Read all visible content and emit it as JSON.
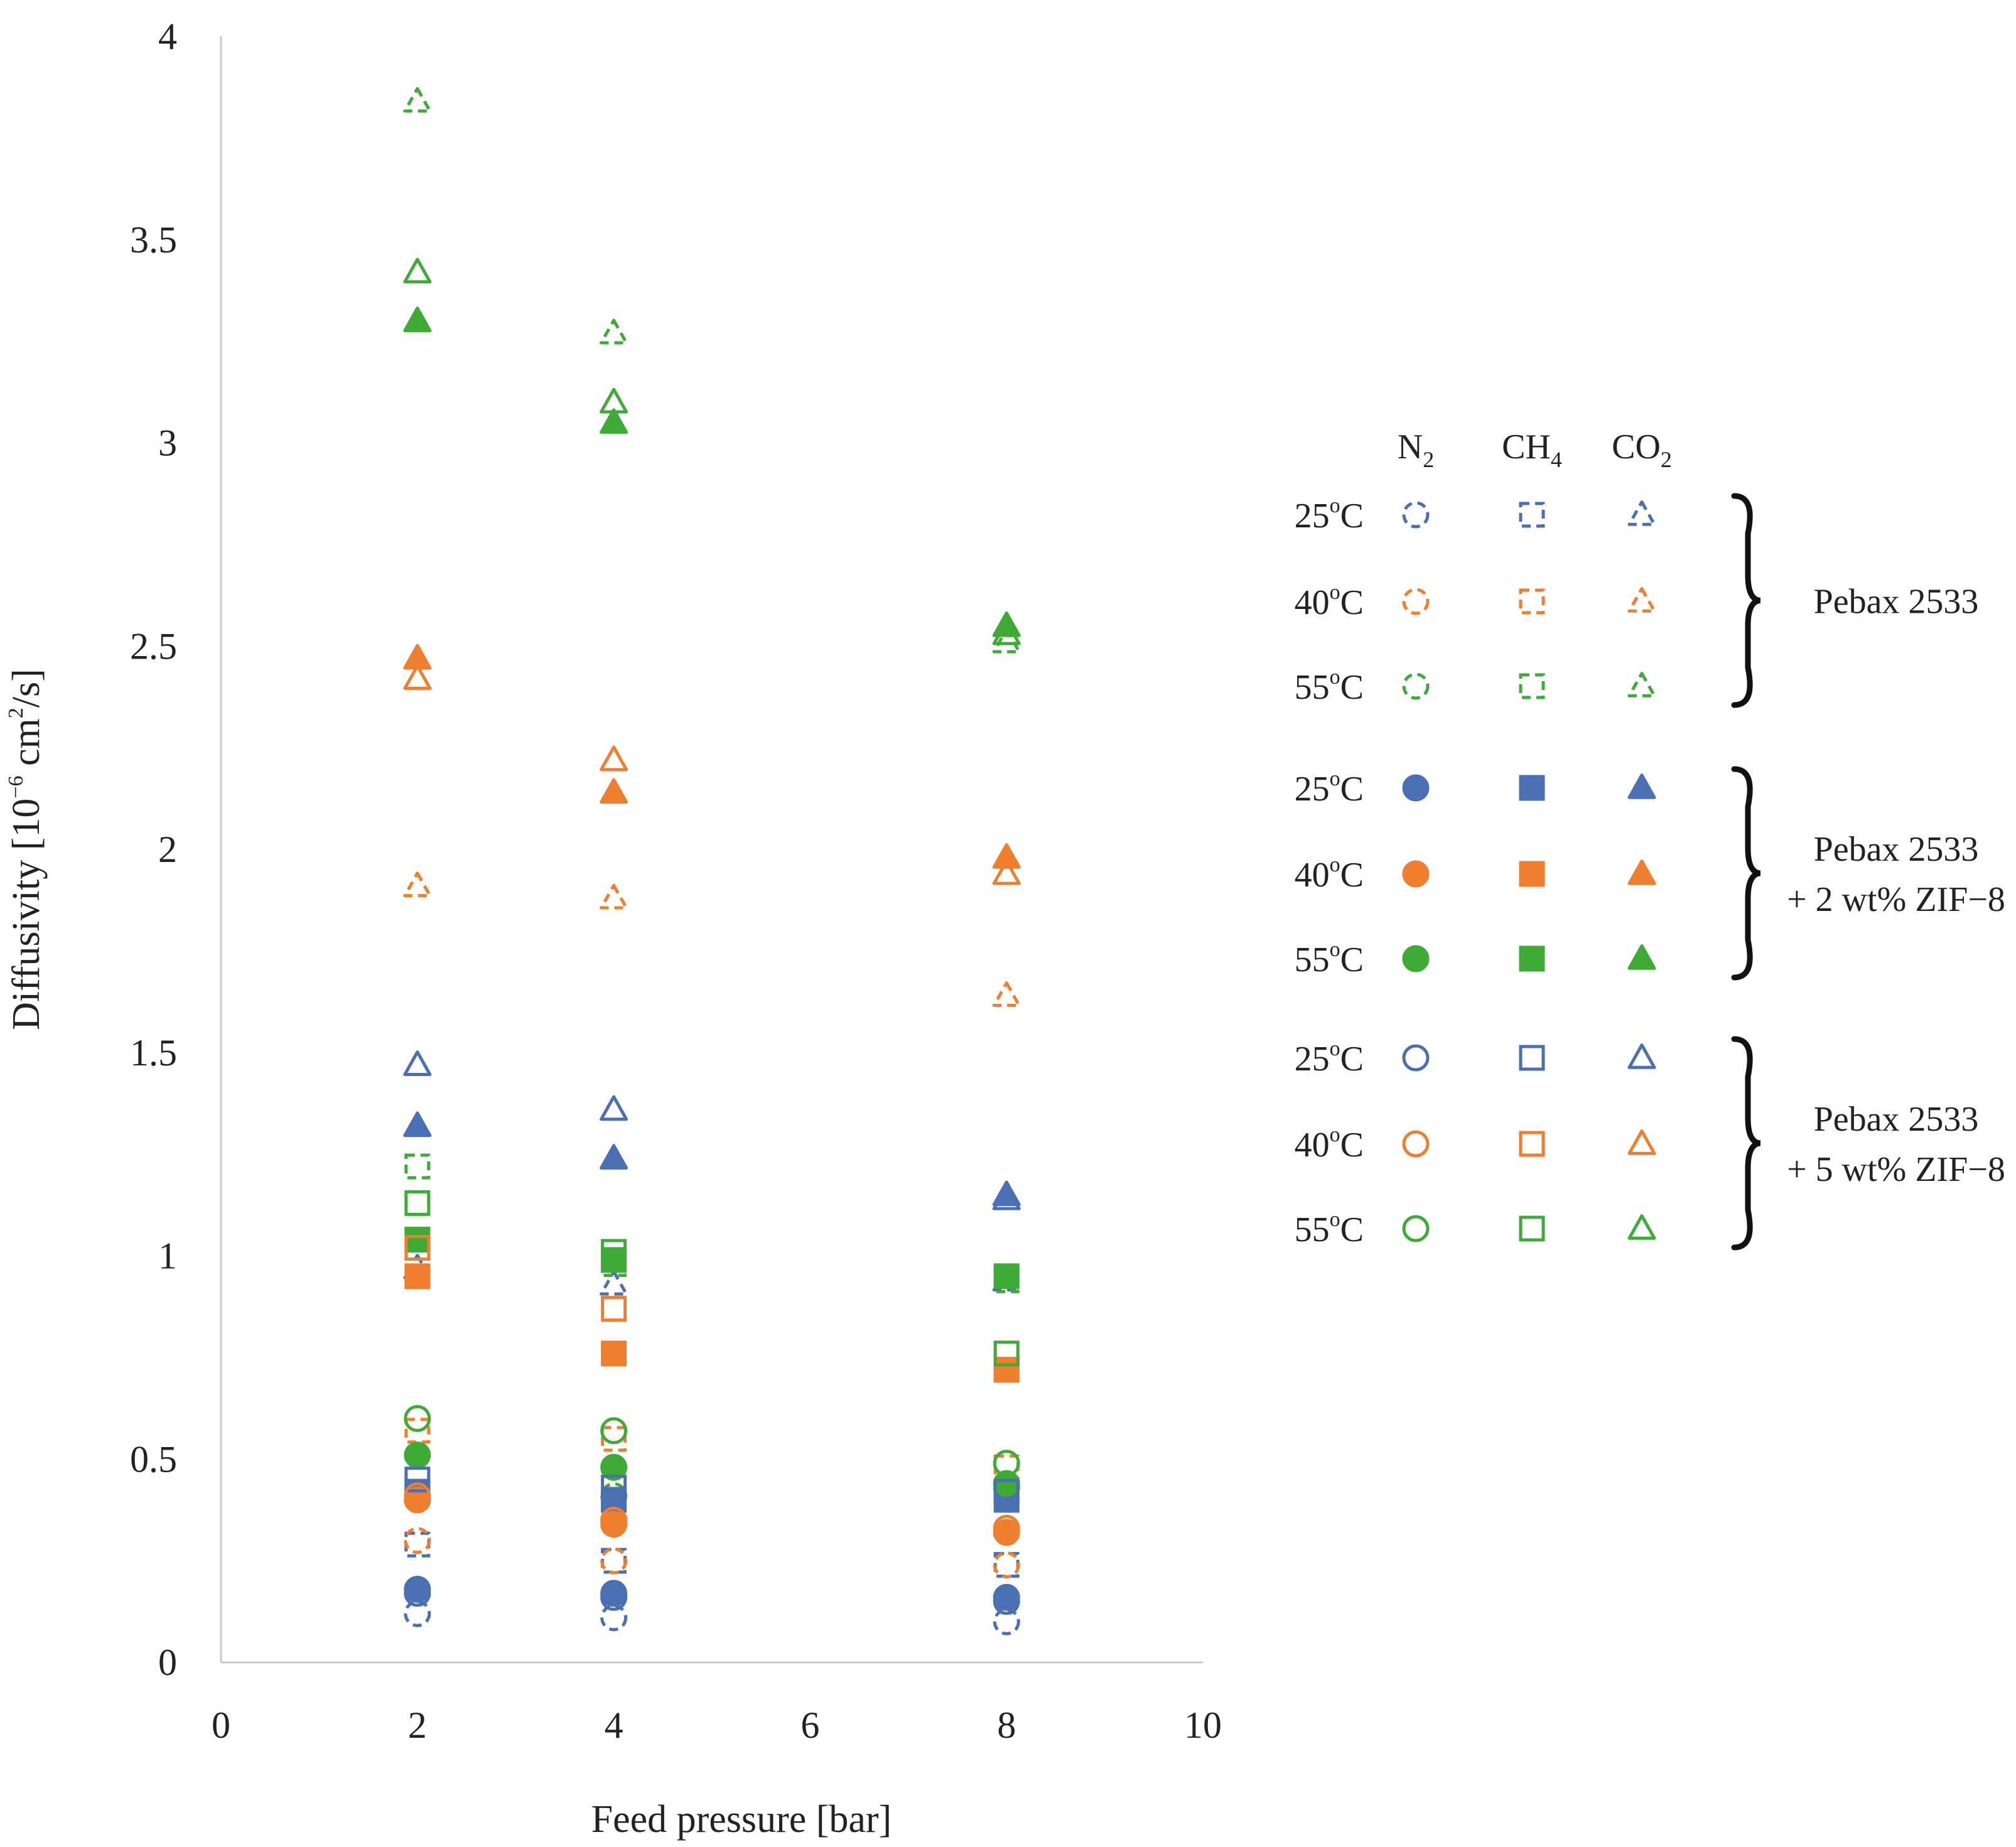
{
  "chart_data": {
    "type": "scatter",
    "xlabel": "Feed pressure [bar]",
    "ylabel_parts": {
      "main": "Diffusivity [10",
      "exp": "−6",
      "unit": " cm",
      "sq": "2",
      "end": "/s]"
    },
    "xlim": [
      0,
      10
    ],
    "ylim": [
      0,
      4
    ],
    "x_ticks": [
      "0",
      "2",
      "4",
      "6",
      "8",
      "10"
    ],
    "y_ticks": [
      "0",
      "0.5",
      "1",
      "1.5",
      "2",
      "2.5",
      "3",
      "3.5",
      "4"
    ],
    "x": [
      2,
      4,
      8
    ],
    "gases": [
      {
        "key": "N2",
        "base": "N",
        "sub": "2",
        "marker": "circle"
      },
      {
        "key": "CH4",
        "base": "CH",
        "sub": "4",
        "marker": "square"
      },
      {
        "key": "CO2",
        "base": "CO",
        "sub": "2",
        "marker": "triangle"
      }
    ],
    "temperatures": [
      {
        "label_num": "25",
        "label_sup": "o",
        "label_end": "C",
        "color": "#4a6fb3"
      },
      {
        "label_num": "40",
        "label_sup": "o",
        "label_end": "C",
        "color": "#f07f2d"
      },
      {
        "label_num": "55",
        "label_sup": "o",
        "label_end": "C",
        "color": "#3dab35"
      }
    ],
    "membranes": [
      {
        "key": "pebax",
        "style": "dashed",
        "label_lines": [
          "Pebax 2533"
        ]
      },
      {
        "key": "zif2",
        "style": "filled",
        "label_lines": [
          "Pebax 2533",
          "+ 2 wt% ZIF−8"
        ]
      },
      {
        "key": "zif5",
        "style": "open",
        "label_lines": [
          "Pebax 2533",
          "+ 5 wt% ZIF−8"
        ]
      }
    ],
    "series": [
      {
        "membrane": "pebax",
        "temp": "25",
        "gas": "N2",
        "values": [
          0.12,
          0.11,
          0.1
        ]
      },
      {
        "membrane": "pebax",
        "temp": "25",
        "gas": "CH4",
        "values": [
          0.29,
          0.25,
          0.24
        ]
      },
      {
        "membrane": "pebax",
        "temp": "25",
        "gas": "CO2",
        "values": [
          0.97,
          0.93,
          0.94
        ]
      },
      {
        "membrane": "pebax",
        "temp": "40",
        "gas": "N2",
        "values": [
          0.3,
          0.25,
          0.24
        ]
      },
      {
        "membrane": "pebax",
        "temp": "40",
        "gas": "CH4",
        "values": [
          0.57,
          0.55,
          0.48
        ]
      },
      {
        "membrane": "pebax",
        "temp": "40",
        "gas": "CO2",
        "values": [
          1.91,
          1.88,
          1.64
        ]
      },
      {
        "membrane": "pebax",
        "temp": "55",
        "gas": "N2",
        "values": [
          0.4,
          0.41,
          0.43
        ]
      },
      {
        "membrane": "pebax",
        "temp": "55",
        "gas": "CH4",
        "values": [
          1.22,
          0.98,
          0.94
        ]
      },
      {
        "membrane": "pebax",
        "temp": "55",
        "gas": "CO2",
        "values": [
          3.84,
          3.27,
          2.51
        ]
      },
      {
        "membrane": "zif2",
        "temp": "25",
        "gas": "N2",
        "values": [
          0.18,
          0.17,
          0.16
        ]
      },
      {
        "membrane": "zif2",
        "temp": "25",
        "gas": "CH4",
        "values": [
          0.42,
          0.4,
          0.4
        ]
      },
      {
        "membrane": "zif2",
        "temp": "25",
        "gas": "CO2",
        "values": [
          1.32,
          1.24,
          1.15
        ]
      },
      {
        "membrane": "zif2",
        "temp": "40",
        "gas": "N2",
        "values": [
          0.4,
          0.34,
          0.32
        ]
      },
      {
        "membrane": "zif2",
        "temp": "40",
        "gas": "CH4",
        "values": [
          0.95,
          0.76,
          0.72
        ]
      },
      {
        "membrane": "zif2",
        "temp": "40",
        "gas": "CO2",
        "values": [
          2.47,
          2.14,
          1.98
        ]
      },
      {
        "membrane": "zif2",
        "temp": "55",
        "gas": "N2",
        "values": [
          0.51,
          0.48,
          0.44
        ]
      },
      {
        "membrane": "zif2",
        "temp": "55",
        "gas": "CH4",
        "values": [
          1.04,
          0.99,
          0.95
        ]
      },
      {
        "membrane": "zif2",
        "temp": "55",
        "gas": "CO2",
        "values": [
          3.3,
          3.05,
          2.55
        ]
      },
      {
        "membrane": "zif5",
        "temp": "25",
        "gas": "N2",
        "values": [
          0.17,
          0.16,
          0.15
        ]
      },
      {
        "membrane": "zif5",
        "temp": "25",
        "gas": "CH4",
        "values": [
          0.45,
          0.43,
          0.42
        ]
      },
      {
        "membrane": "zif5",
        "temp": "25",
        "gas": "CO2",
        "values": [
          1.47,
          1.36,
          1.14
        ]
      },
      {
        "membrane": "zif5",
        "temp": "40",
        "gas": "N2",
        "values": [
          0.41,
          0.35,
          0.33
        ]
      },
      {
        "membrane": "zif5",
        "temp": "40",
        "gas": "CH4",
        "values": [
          1.02,
          0.87,
          0.72
        ]
      },
      {
        "membrane": "zif5",
        "temp": "40",
        "gas": "CO2",
        "values": [
          2.42,
          2.22,
          1.94
        ]
      },
      {
        "membrane": "zif5",
        "temp": "55",
        "gas": "N2",
        "values": [
          0.6,
          0.57,
          0.49
        ]
      },
      {
        "membrane": "zif5",
        "temp": "55",
        "gas": "CH4",
        "values": [
          1.13,
          1.01,
          0.76
        ]
      },
      {
        "membrane": "zif5",
        "temp": "55",
        "gas": "CO2",
        "values": [
          3.42,
          3.1,
          2.53
        ]
      }
    ]
  }
}
